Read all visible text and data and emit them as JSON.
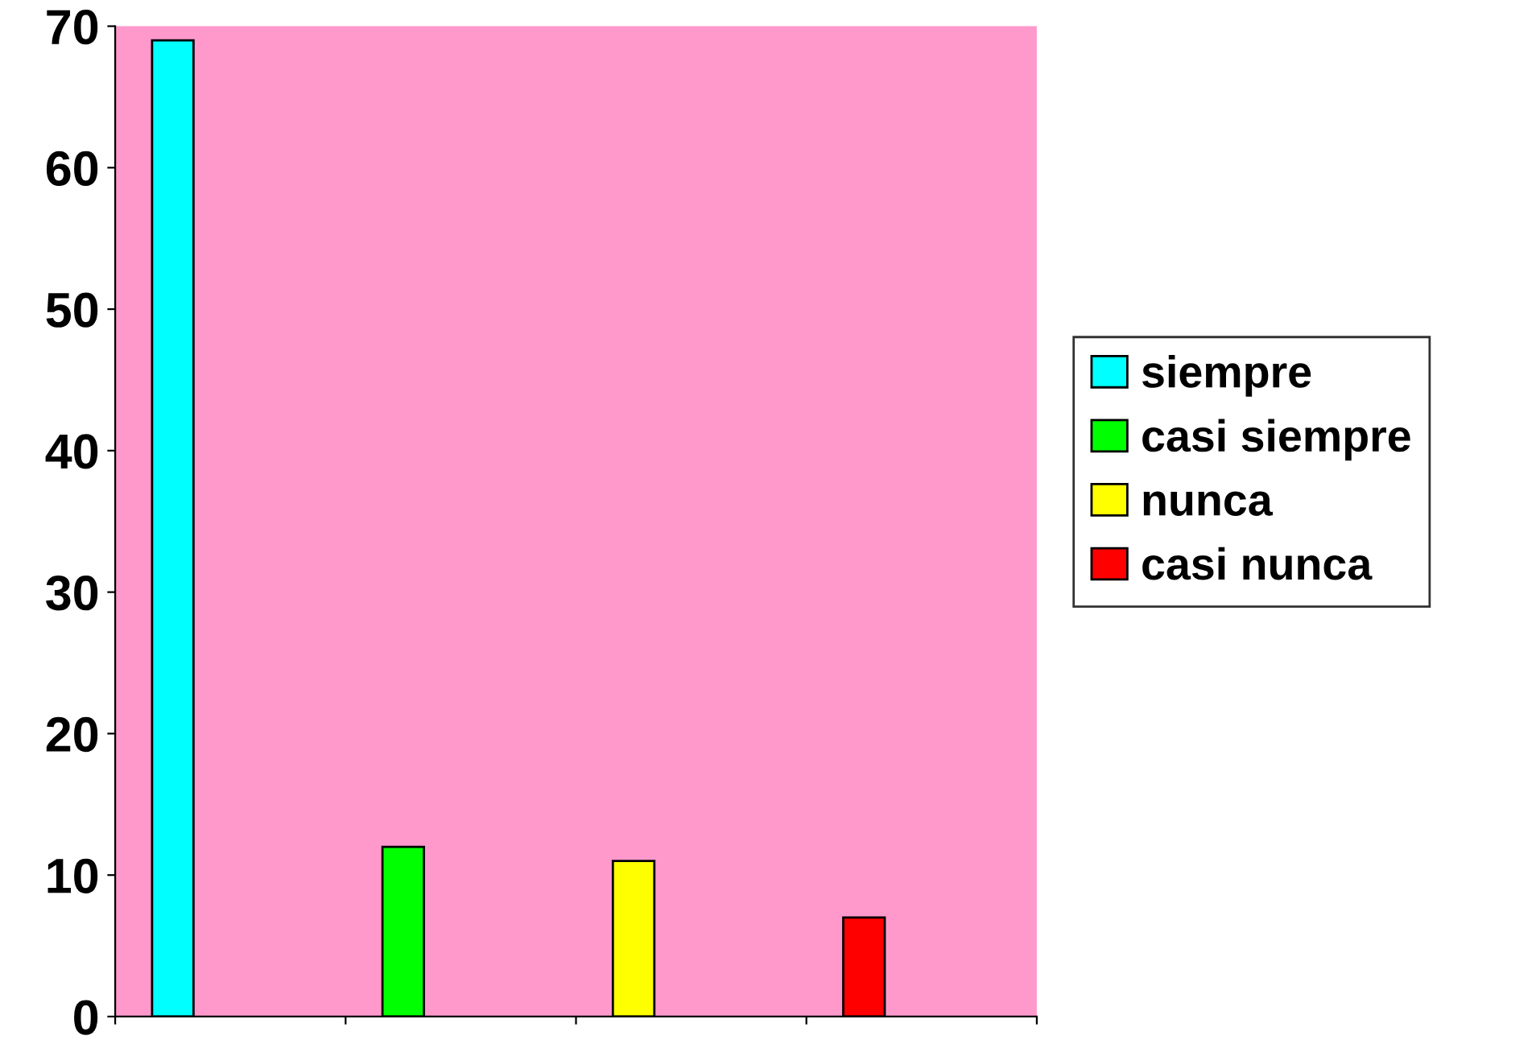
{
  "chart_data": {
    "type": "bar",
    "categories": [
      null,
      null,
      null,
      null
    ],
    "series": [
      {
        "name": "siempre",
        "color": "#00ffff",
        "values": [
          69,
          null,
          null,
          null
        ]
      },
      {
        "name": "casi siempre",
        "color": "#00ff00",
        "values": [
          null,
          12,
          null,
          null
        ]
      },
      {
        "name": "nunca",
        "color": "#ffff00",
        "values": [
          null,
          null,
          11,
          null
        ]
      },
      {
        "name": "casi nunca",
        "color": "#ff0000",
        "values": [
          null,
          null,
          null,
          7
        ]
      }
    ],
    "ylim": [
      0,
      70
    ],
    "yticks": [
      0,
      10,
      20,
      30,
      40,
      50,
      60,
      70
    ],
    "grid": false,
    "legend": "right"
  }
}
